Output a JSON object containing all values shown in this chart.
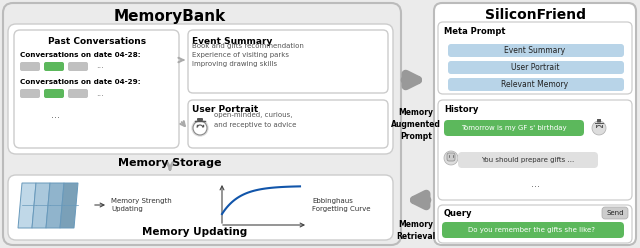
{
  "fig_width": 6.4,
  "fig_height": 2.48,
  "dpi": 100,
  "bg_color": "#ebebeb",
  "white": "#ffffff",
  "green": "#4caf50",
  "light_blue": "#b8d7ea",
  "gray_block": "#c8c8c8",
  "arrow_gray": "#aaaaaa",
  "memorybank_title": "MemoryBank",
  "siliconfriend_title": "SiliconFriend",
  "past_conv_title": "Past Conversations",
  "conv_date28": "Conversations on date 04-28:",
  "conv_date29": "Conversations on date 04-29:",
  "event_summary_title": "Event Summary",
  "event_summary_text": "Book and gifts recommendation\nExperience of visiting parks\nImproving drawing skills",
  "user_portrait_title": "User Portrait",
  "user_portrait_text": "open-minded, curious,\nand receptive to advice",
  "memory_storage_label": "Memory Storage",
  "memory_strength_label": "Memory Strength\nUpdating",
  "ebbinghaus_label": "Ebbinghaus\nForgetting Curve",
  "memory_updating_label": "Memory Updating",
  "meta_prompt_label": "Meta Prompt",
  "event_summary_blue": "Event Summary",
  "user_portrait_blue": "User Portrait",
  "relevant_memory_blue": "Relevant Memory",
  "history_label": "History",
  "chat1": "Tomorrow is my GF s' birthday",
  "chat2": "You should prepare gifts ...",
  "dots": "...",
  "query_label": "Query",
  "send_label": "Send",
  "query_text": "Do you remember the gifts she like?",
  "memory_augmented": "Memory\nAugmented\nPrompt",
  "memory_retrieval": "Memory\nRetrieval"
}
